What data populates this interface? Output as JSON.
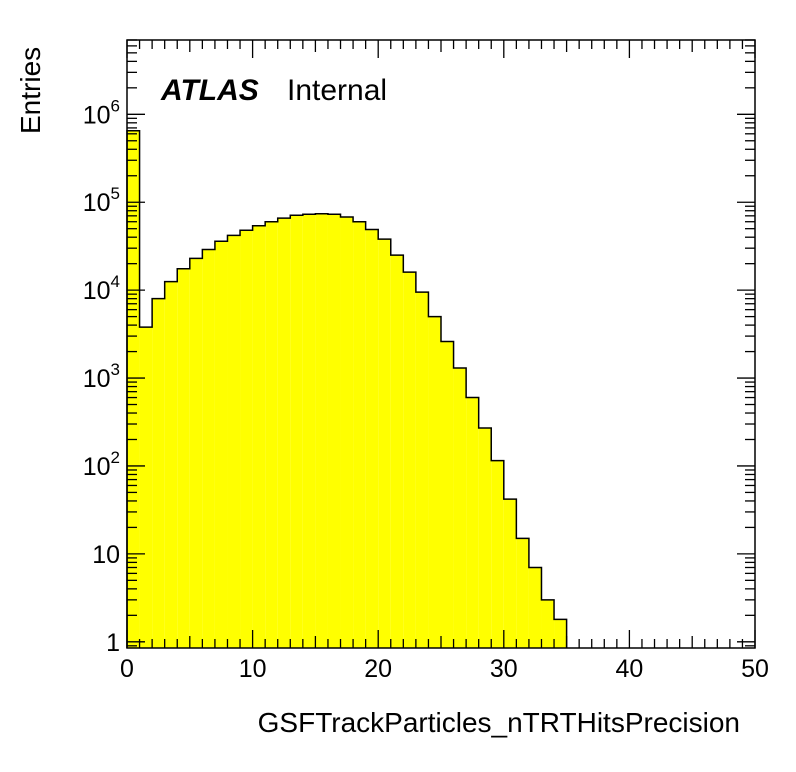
{
  "chart_data": {
    "type": "bar",
    "histogram": true,
    "xlabel": "GSFTrackParticles_nTRTHitsPrecision",
    "ylabel": "Entries",
    "label_bold": "ATLAS",
    "label_normal": "Internal",
    "xlim": [
      0,
      50
    ],
    "ylim": [
      0.85,
      7000000
    ],
    "yscale": "log",
    "fill_color": "#ffff00",
    "line_color": "#000000",
    "bin_width": 1,
    "x_ticks": [
      "0",
      "10",
      "20",
      "30",
      "40",
      "50"
    ],
    "y_ticks": [
      {
        "value": 1,
        "base": "1",
        "exp": ""
      },
      {
        "value": 10,
        "base": "10",
        "exp": ""
      },
      {
        "value": 100,
        "base": "10",
        "exp": "2"
      },
      {
        "value": 1000,
        "base": "10",
        "exp": "3"
      },
      {
        "value": 10000,
        "base": "10",
        "exp": "4"
      },
      {
        "value": 100000,
        "base": "10",
        "exp": "5"
      },
      {
        "value": 1000000,
        "base": "10",
        "exp": "6"
      }
    ],
    "bin_edges": [
      0,
      1,
      2,
      3,
      4,
      5,
      6,
      7,
      8,
      9,
      10,
      11,
      12,
      13,
      14,
      15,
      16,
      17,
      18,
      19,
      20,
      21,
      22,
      23,
      24,
      25,
      26,
      27,
      28,
      29,
      30,
      31,
      32,
      33,
      34,
      35
    ],
    "values": [
      650000,
      3800,
      8000,
      12500,
      17500,
      23000,
      29000,
      36000,
      42000,
      48000,
      54000,
      60000,
      66000,
      71000,
      73000,
      74000,
      73000,
      68000,
      60000,
      49000,
      38000,
      25000,
      16000,
      9500,
      5000,
      2600,
      1300,
      600,
      270,
      115,
      42,
      15,
      7,
      3,
      1.8
    ]
  }
}
